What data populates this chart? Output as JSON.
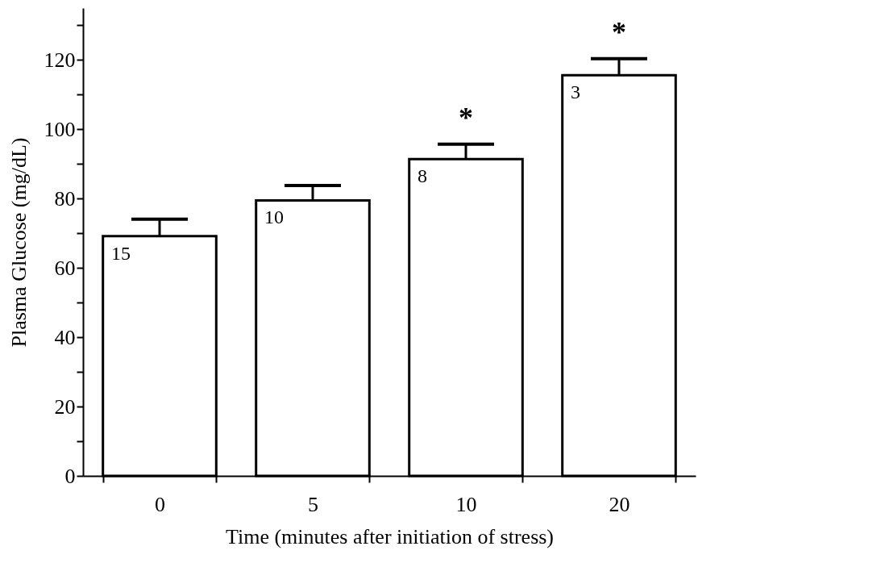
{
  "chart_data": {
    "type": "bar",
    "xlabel": "Time (minutes after initiation of stress)",
    "ylabel": "Plasma Glucose (mg/dL)",
    "categories": [
      "0",
      "5",
      "10",
      "20"
    ],
    "values": [
      69.2,
      79.5,
      91.4,
      115.6
    ],
    "errors": [
      [
        69.2,
        74.1
      ],
      [
        79.5,
        83.8
      ],
      [
        91.4,
        95.7
      ],
      [
        115.6,
        120.4
      ]
    ],
    "color": "#ffffff",
    "ylim": [
      0,
      135
    ],
    "yticks": [
      0,
      {
        "value": 10,
        "label": null
      },
      20,
      {
        "value": 30,
        "label": null
      },
      40,
      {
        "value": 50,
        "label": null
      },
      60,
      {
        "value": 70,
        "label": null
      },
      80,
      {
        "value": 90,
        "label": null
      },
      100,
      {
        "value": 110,
        "label": null
      },
      120,
      {
        "value": 130,
        "label": null
      }
    ],
    "annotations": [
      {
        "text": "15",
        "x": "0",
        "y": 69.2
      },
      {
        "text": "10",
        "x": "5",
        "y": 79.5
      },
      {
        "text": "8",
        "x": "10",
        "y": 91.4
      },
      {
        "text": "3",
        "x": "20",
        "y": 115.6
      },
      {
        "text": "*",
        "x": "10",
        "y": 95.7
      },
      {
        "text": "*",
        "x": "20",
        "y": 120.4
      }
    ]
  }
}
